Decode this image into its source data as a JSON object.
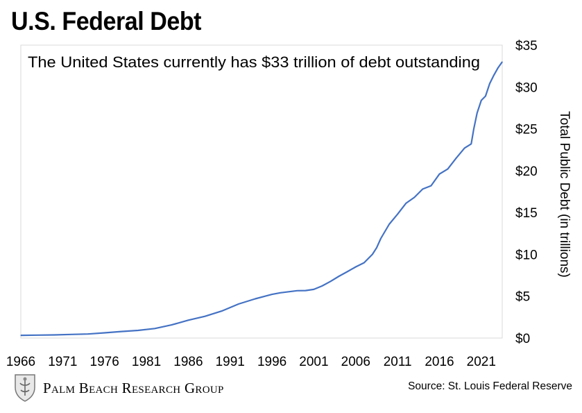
{
  "title": "U.S. Federal Debt",
  "source": "Source: St. Louis Federal Reserve",
  "logo": {
    "text": "Palm Beach Research Group",
    "icon": "crest-logo-icon"
  },
  "colors": {
    "line": "#4472c4",
    "frame": "#d9d9d9",
    "text": "#000000"
  },
  "chart_data": {
    "type": "line",
    "annotation": "The United States currently has $33 trillion of debt outstanding",
    "ylabel": "Total Public Debt (in trillions)",
    "ylabel_position": "right",
    "xlim": [
      1966,
      2023.5
    ],
    "ylim": [
      0,
      35
    ],
    "x_ticks": [
      1966,
      1971,
      1976,
      1981,
      1986,
      1991,
      1996,
      2001,
      2006,
      2011,
      2016,
      2021
    ],
    "x_tick_labels": [
      "1966",
      "1971",
      "1976",
      "1981",
      "1986",
      "1991",
      "1996",
      "2001",
      "2006",
      "2011",
      "2016",
      "2021"
    ],
    "y_ticks": [
      0,
      5,
      10,
      15,
      20,
      25,
      30,
      35
    ],
    "y_tick_labels": [
      "$0",
      "$5",
      "$10",
      "$15",
      "$20",
      "$25",
      "$30",
      "$35"
    ],
    "grid": false,
    "series": [
      {
        "x": [
          1966,
          1968,
          1970,
          1972,
          1974,
          1976,
          1978,
          1980,
          1982,
          1984,
          1986,
          1988,
          1990,
          1992,
          1994,
          1996,
          1997,
          1998,
          1999,
          2000,
          2001,
          2002,
          2003,
          2004,
          2005,
          2006,
          2007,
          2008,
          2008.5,
          2009,
          2010,
          2011,
          2012,
          2013,
          2014,
          2015,
          2016,
          2017,
          2018,
          2019,
          2019.8,
          2020.1,
          2020.5,
          2021,
          2021.5,
          2022,
          2022.5,
          2023,
          2023.5
        ],
        "y": [
          0.32,
          0.35,
          0.37,
          0.43,
          0.48,
          0.62,
          0.78,
          0.91,
          1.14,
          1.57,
          2.13,
          2.6,
          3.23,
          4.06,
          4.69,
          5.22,
          5.41,
          5.53,
          5.66,
          5.67,
          5.81,
          6.23,
          6.78,
          7.38,
          7.93,
          8.5,
          9.0,
          10.0,
          10.8,
          11.9,
          13.6,
          14.8,
          16.1,
          16.8,
          17.8,
          18.2,
          19.6,
          20.2,
          21.5,
          22.7,
          23.2,
          25.0,
          26.9,
          28.4,
          28.9,
          30.4,
          31.4,
          32.3,
          33.0
        ]
      }
    ]
  }
}
